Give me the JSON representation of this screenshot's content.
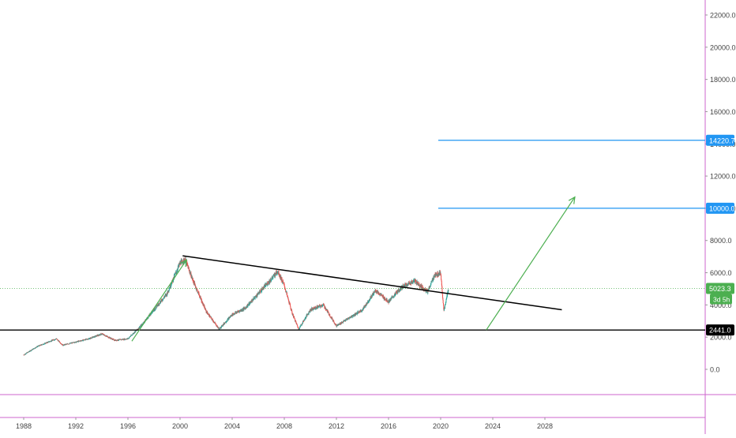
{
  "chart_data": {
    "type": "candlestick",
    "x_unit": "year",
    "x_range": [
      1987.0,
      2040.0
    ],
    "y_range": [
      -1200,
      23000
    ],
    "x_ticks": [
      "1988",
      "1992",
      "1996",
      "2000",
      "2004",
      "2008",
      "2012",
      "2016",
      "2020",
      "2024",
      "2028"
    ],
    "y_ticks": [
      "0.0",
      "2000.0",
      "4000.0",
      "6000.0",
      "8000.0",
      "10000.0",
      "12000.0",
      "14000.0",
      "16000.0",
      "18000.0",
      "20000.0",
      "22000.0"
    ],
    "price_path": [
      [
        1988.0,
        900
      ],
      [
        1989.0,
        1400
      ],
      [
        1990.5,
        1900
      ],
      [
        1991.0,
        1500
      ],
      [
        1992.0,
        1700
      ],
      [
        1993.0,
        1900
      ],
      [
        1994.0,
        2200
      ],
      [
        1995.0,
        1800
      ],
      [
        1996.0,
        1900
      ],
      [
        1997.0,
        2700
      ],
      [
        1998.0,
        3700
      ],
      [
        1999.0,
        4700
      ],
      [
        2000.0,
        6600
      ],
      [
        2000.4,
        6800
      ],
      [
        2001.0,
        5500
      ],
      [
        2002.0,
        3600
      ],
      [
        2003.0,
        2500
      ],
      [
        2004.0,
        3400
      ],
      [
        2005.0,
        3800
      ],
      [
        2006.0,
        4700
      ],
      [
        2007.0,
        5600
      ],
      [
        2007.5,
        6100
      ],
      [
        2008.0,
        5200
      ],
      [
        2008.6,
        3500
      ],
      [
        2009.1,
        2500
      ],
      [
        2010.0,
        3700
      ],
      [
        2011.0,
        4000
      ],
      [
        2012.0,
        2700
      ],
      [
        2013.0,
        3200
      ],
      [
        2014.0,
        3700
      ],
      [
        2015.0,
        4900
      ],
      [
        2016.0,
        4200
      ],
      [
        2017.0,
        5100
      ],
      [
        2018.0,
        5500
      ],
      [
        2019.0,
        4800
      ],
      [
        2019.5,
        5800
      ],
      [
        2020.0,
        6000
      ],
      [
        2020.25,
        3600
      ],
      [
        2020.6,
        5000
      ]
    ],
    "horizontal_levels": [
      {
        "value": 14220.7,
        "label": "14220.7",
        "color": "#2196f3"
      },
      {
        "value": 10000.0,
        "label": "10000.0",
        "color": "#2196f3"
      },
      {
        "value": 2441.0,
        "label": "2441.0",
        "color": "#000000"
      }
    ],
    "current_price": {
      "value": 5023.3,
      "label": "5023.3",
      "countdown": "3d 5h",
      "color": "#4caf50"
    },
    "trendline": {
      "from": [
        2000.2,
        7050
      ],
      "to": [
        2029.3,
        3700
      ],
      "color": "#000000"
    },
    "arrows": [
      {
        "from": [
          1996.3,
          1750
        ],
        "to": [
          2000.5,
          6800
        ],
        "color": "#4caf50"
      },
      {
        "from": [
          2023.5,
          2441
        ],
        "to": [
          2030.3,
          10700
        ],
        "color": "#4caf50"
      }
    ],
    "colors": {
      "up": "#26a69a",
      "down": "#ef5350",
      "axis_line": "#cc66cc"
    }
  }
}
